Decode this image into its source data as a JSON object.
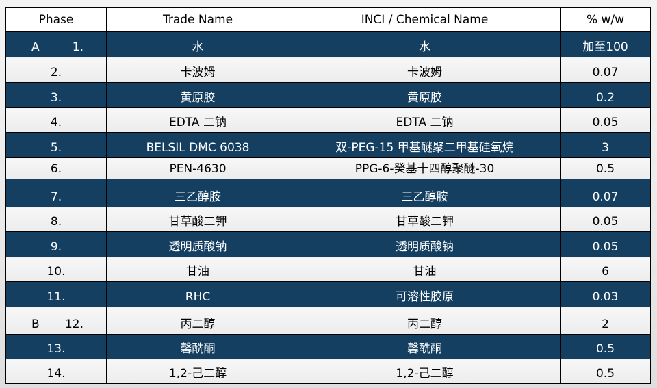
{
  "header": {
    "phase": "Phase",
    "trade": "Trade Name",
    "inci": "INCI / Chemical Name",
    "pct": "% w/w"
  },
  "colors": {
    "dark_row": "#153f61",
    "light_row": "#f2f2f2"
  },
  "rows": [
    {
      "phase": "A",
      "num": "1.",
      "trade": "水",
      "inci": "水",
      "pct": "加至100"
    },
    {
      "phase": "",
      "num": "2.",
      "trade": "卡波姆",
      "inci": "卡波姆",
      "pct": "0.07"
    },
    {
      "phase": "",
      "num": "3.",
      "trade": "黄原胶",
      "inci": "黄原胶",
      "pct": "0.2"
    },
    {
      "phase": "",
      "num": "4.",
      "trade": "EDTA 二钠",
      "inci": "EDTA 二钠",
      "pct": "0.05"
    },
    {
      "phase": "",
      "num": "5.",
      "trade": "BELSIL DMC 6038",
      "inci": "双-PEG-15 甲基醚聚二甲基硅氧烷",
      "pct": "3"
    },
    {
      "phase": "",
      "num": "6.",
      "trade": "PEN-4630",
      "inci": "PPG-6-癸基十四醇聚醚-30",
      "pct": "0.5"
    },
    {
      "phase": "",
      "num": "7.",
      "trade": "三乙醇胺",
      "inci": "三乙醇胺",
      "pct": "0.07"
    },
    {
      "phase": "",
      "num": "8.",
      "trade": "甘草酸二钾",
      "inci": "甘草酸二钾",
      "pct": "0.05"
    },
    {
      "phase": "",
      "num": "9.",
      "trade": "透明质酸钠",
      "inci": "透明质酸钠",
      "pct": "0.05"
    },
    {
      "phase": "",
      "num": "10.",
      "trade": "甘油",
      "inci": "甘油",
      "pct": "6"
    },
    {
      "phase": "",
      "num": "11.",
      "trade": "RHC",
      "inci": "可溶性胶原",
      "pct": "0.03"
    },
    {
      "phase": "B",
      "num": "12.",
      "trade": "丙二醇",
      "inci": "丙二醇",
      "pct": "2"
    },
    {
      "phase": "",
      "num": "13.",
      "trade": "馨酰酮",
      "inci": "馨酰酮",
      "pct": "0.5"
    },
    {
      "phase": "",
      "num": "14.",
      "trade": "1,2-己二醇",
      "inci": "1,2-己二醇",
      "pct": "0.5"
    }
  ]
}
